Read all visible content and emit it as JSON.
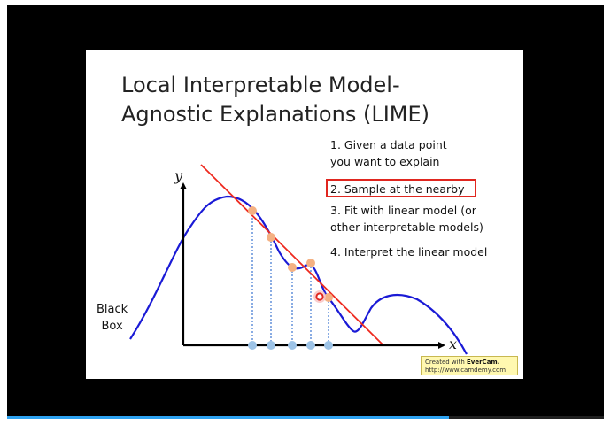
{
  "slide": {
    "title_lines": [
      "Local Interpretable Model-",
      "Agnostic Explanations (LIME)"
    ],
    "steps": {
      "step1_lines": [
        "1. Given a data point",
        "you want to explain"
      ],
      "step2": "2. Sample at the nearby",
      "step3_lines": [
        "3. Fit with linear model (or",
        "other interpretable models)"
      ],
      "step4": "4. Interpret the linear model"
    },
    "black_box_lines": [
      "Black",
      "Box"
    ],
    "axis": {
      "x": "x",
      "y": "y"
    },
    "colors": {
      "curve": "#1a1ad6",
      "fit_line": "#ee2a1f",
      "sample_points": "#f4b183",
      "projection_points": "#9dc3e6",
      "highlight": "#e0261f"
    }
  },
  "watermark": {
    "prefix": "Created with",
    "brand": "EverCam.",
    "url": "http://www.camdemy.com"
  },
  "player": {
    "progress": 0.74
  }
}
